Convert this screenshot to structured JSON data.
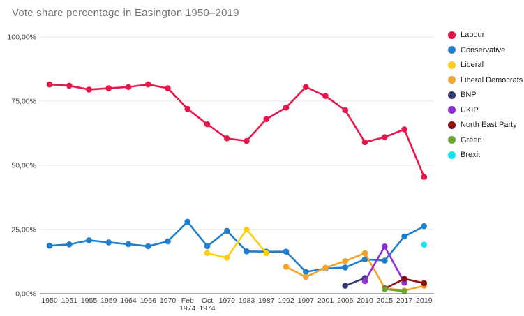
{
  "colors": {
    "background": "#ffffff",
    "grid": "#e7e7e7",
    "axis_line": "#8f8f8f",
    "tick_text": "#424242",
    "title_text": "#757575",
    "legend_text": "#212121"
  },
  "chart_data": {
    "type": "line",
    "title": "Vote share percentage in Easington 1950–2019",
    "grid": true,
    "legend_position": "right",
    "ylim": [
      0,
      100
    ],
    "y_axis": {
      "ticks": [
        {
          "value": 100,
          "label": "100,00%"
        },
        {
          "value": 75,
          "label": "75,00%"
        },
        {
          "value": 50,
          "label": "50,00%"
        },
        {
          "value": 25,
          "label": "25,00%"
        },
        {
          "value": 0,
          "label": "0,00%"
        }
      ]
    },
    "categories": [
      "1950",
      "1951",
      "1955",
      "1959",
      "1964",
      "1966",
      "1970",
      "Feb 1974",
      "Oct 1974",
      "1979",
      "1983",
      "1987",
      "1992",
      "1997",
      "2001",
      "2005",
      "2010",
      "2015",
      "2017",
      "2019"
    ],
    "x_tick_lines": [
      [
        "1950"
      ],
      [
        "1951"
      ],
      [
        "1955"
      ],
      [
        "1959"
      ],
      [
        "1964"
      ],
      [
        "1966"
      ],
      [
        "1970"
      ],
      [
        "Feb",
        "1974"
      ],
      [
        "Oct",
        "1974"
      ],
      [
        "1979"
      ],
      [
        "1983"
      ],
      [
        "1987"
      ],
      [
        "1992"
      ],
      [
        "1997"
      ],
      [
        "2001"
      ],
      [
        "2005"
      ],
      [
        "2010"
      ],
      [
        "2015"
      ],
      [
        "2017"
      ],
      [
        "2019"
      ]
    ],
    "series": [
      {
        "name": "Labour",
        "color": "#e8174b",
        "values": [
          81.5,
          81,
          79.5,
          80,
          80.5,
          81.5,
          80,
          72,
          66,
          60.5,
          59.5,
          68,
          72.5,
          80.5,
          77,
          71.5,
          59,
          61,
          64,
          45.5
        ]
      },
      {
        "name": "Conservative",
        "color": "#1e7fd1",
        "values": [
          18.7,
          19.2,
          20.8,
          20,
          19.3,
          18.5,
          20.4,
          28,
          18.5,
          24.5,
          16.5,
          16.4,
          16.4,
          8.5,
          9.8,
          10.2,
          13.4,
          12.9,
          22.3,
          26.3
        ]
      },
      {
        "name": "Liberal",
        "color": "#ffd012",
        "values": [
          null,
          null,
          null,
          null,
          null,
          null,
          null,
          null,
          15.8,
          14,
          25,
          15.8,
          null,
          null,
          null,
          null,
          null,
          null,
          null,
          null
        ]
      },
      {
        "name": "Liberal Democrats",
        "color": "#f7a229",
        "values": [
          null,
          null,
          null,
          null,
          null,
          null,
          null,
          null,
          null,
          null,
          null,
          null,
          10.5,
          6.5,
          10.1,
          12.7,
          15.8,
          2.2,
          1.2,
          3.1
        ]
      },
      {
        "name": "BNP",
        "color": "#333a73",
        "values": [
          null,
          null,
          null,
          null,
          null,
          null,
          null,
          null,
          null,
          null,
          null,
          null,
          null,
          null,
          null,
          3.1,
          6.1,
          null,
          null,
          null
        ]
      },
      {
        "name": "UKIP",
        "color": "#8e2fd9",
        "values": [
          null,
          null,
          null,
          null,
          null,
          null,
          null,
          null,
          null,
          null,
          null,
          null,
          null,
          null,
          null,
          null,
          4.9,
          18.4,
          4.3,
          null
        ]
      },
      {
        "name": "North East Party",
        "color": "#8c1111",
        "values": [
          null,
          null,
          null,
          null,
          null,
          null,
          null,
          null,
          null,
          null,
          null,
          null,
          null,
          null,
          null,
          null,
          null,
          2,
          5.8,
          4.1
        ]
      },
      {
        "name": "Green",
        "color": "#6ba72e",
        "values": [
          null,
          null,
          null,
          null,
          null,
          null,
          null,
          null,
          null,
          null,
          null,
          null,
          null,
          null,
          null,
          null,
          null,
          1.8,
          0.9,
          null
        ]
      },
      {
        "name": "Brexit",
        "color": "#00e9f5",
        "values": [
          null,
          null,
          null,
          null,
          null,
          null,
          null,
          null,
          null,
          null,
          null,
          null,
          null,
          null,
          null,
          null,
          null,
          null,
          null,
          19.1
        ]
      }
    ]
  }
}
